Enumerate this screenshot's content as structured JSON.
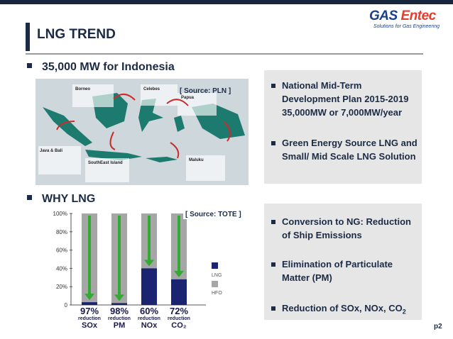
{
  "brand": {
    "name_main": "GAS",
    "name_accent": "Entec",
    "tagline": "Solutions for Gas Engineering"
  },
  "header": {
    "title": "LNG TREND"
  },
  "section1": {
    "heading": "35,000 MW for Indonesia",
    "source": "[ Source: PLN ]",
    "map_regions": [
      "Borneo",
      "Celebes",
      "Papua",
      "Java & Bali",
      "SouthEast Island",
      "Maluku"
    ],
    "panel_items": [
      "National Mid-Term Development Plan 2015-2019 35,000MW or 7,000MW/year",
      "Green Energy Source LNG and Small/ Mid Scale LNG Solution"
    ]
  },
  "section2": {
    "heading": "WHY LNG",
    "source": "[ Source: TOTE ]",
    "panel_items": [
      {
        "text": "Conversion to NG: Reduction of Ship Emissions"
      },
      {
        "text": "Elimination of Particulate Matter (PM)"
      },
      {
        "text": "Reduction of SOx, NOx, CO",
        "sub": "2"
      }
    ]
  },
  "chart_data": {
    "type": "bar",
    "categories": [
      "SOx",
      "PM",
      "NOx",
      "CO2"
    ],
    "category_labels": [
      "SOx",
      "PM",
      "NOx",
      "CO₂"
    ],
    "reduction_pct_labels": [
      "97%",
      "98%",
      "60%",
      "72%"
    ],
    "reduction_word": "reduction",
    "series": [
      {
        "name": "LNG",
        "values": [
          3,
          2,
          40,
          28
        ],
        "color": "#1a2470"
      },
      {
        "name": "HFO",
        "values": [
          100,
          100,
          100,
          100
        ],
        "color": "#a6a6a6"
      }
    ],
    "ytick_labels": [
      "0",
      "20%",
      "40%",
      "60%",
      "80%",
      "100%"
    ],
    "ylim": [
      0,
      100
    ],
    "arrow_color": "#33aa33"
  },
  "footer": {
    "page": "p2"
  }
}
